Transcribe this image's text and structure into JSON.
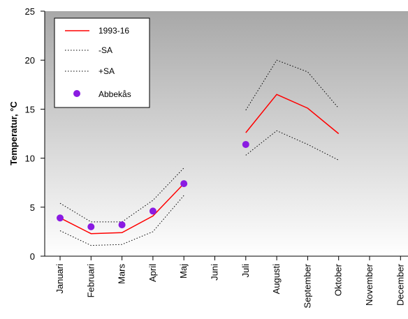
{
  "chart_data": {
    "type": "line",
    "ylabel": "Temperatur, °C",
    "ylim": [
      0,
      25
    ],
    "yticks": [
      0,
      5,
      10,
      15,
      20,
      25
    ],
    "categories": [
      "Januari",
      "Februari",
      "Mars",
      "April",
      "Maj",
      "Juni",
      "Juli",
      "Augusti",
      "September",
      "Oktober",
      "November",
      "December"
    ],
    "grid": false,
    "legend_position": "top-left",
    "background": "vertical gradient grey to white",
    "series": [
      {
        "name": "1993-16",
        "style": "line",
        "color": "#ff0000",
        "values": [
          3.9,
          2.3,
          2.4,
          4.1,
          7.4,
          null,
          12.6,
          16.5,
          15.1,
          12.5,
          null,
          null
        ]
      },
      {
        "name": "-SA",
        "style": "dotted",
        "color": "#000000",
        "values": [
          5.4,
          3.5,
          3.5,
          5.7,
          9.0,
          null,
          14.9,
          20.0,
          18.8,
          15.1,
          null,
          null
        ]
      },
      {
        "name": "+SA",
        "style": "dotted",
        "color": "#000000",
        "values": [
          2.6,
          1.1,
          1.2,
          2.5,
          6.2,
          null,
          10.3,
          12.8,
          11.4,
          9.8,
          null,
          null
        ]
      },
      {
        "name": "Abbekås",
        "style": "marker",
        "color": "#8a1be2",
        "values": [
          3.9,
          3.0,
          3.2,
          4.6,
          7.4,
          null,
          11.4,
          null,
          null,
          null,
          null,
          null
        ]
      }
    ]
  }
}
